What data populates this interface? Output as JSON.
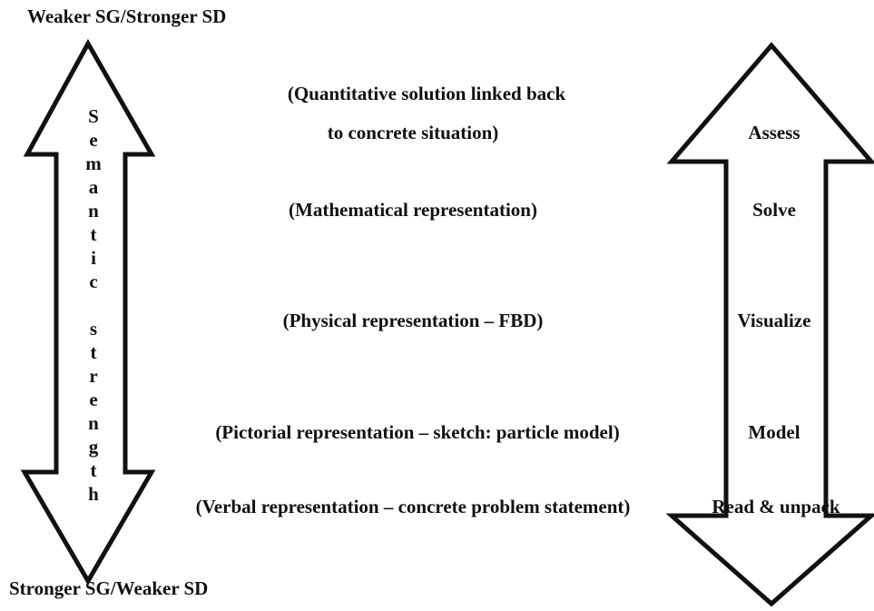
{
  "top_label": "Weaker SG/Stronger SD",
  "bottom_label": "Stronger SG/Weaker SD",
  "axis_label": "Semantic strength",
  "representations": [
    "(Quantitative solution linked back",
    "to concrete situation)",
    "(Mathematical representation)",
    "(Physical representation – FBD)",
    "(Pictorial representation – sketch: particle model)",
    "(Verbal representation – concrete problem statement)"
  ],
  "steps": [
    "Assess",
    "Solve",
    "Visualize",
    "Model",
    "Read & unpack"
  ]
}
